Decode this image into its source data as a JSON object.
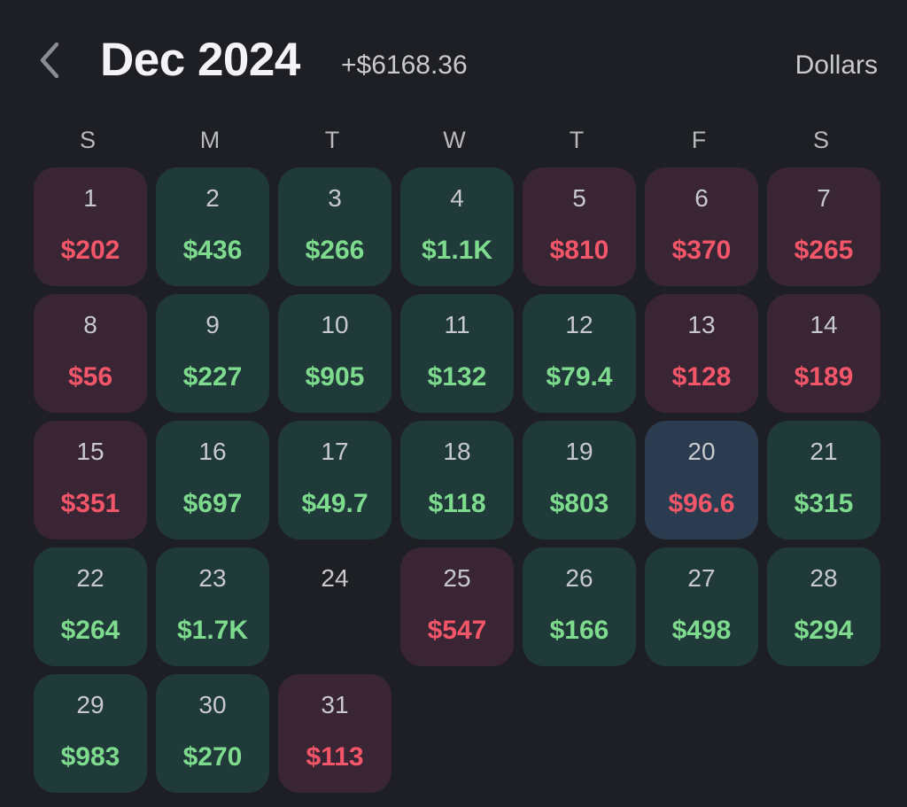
{
  "header": {
    "title": "Dec 2024",
    "total": "+$6168.36",
    "unit": "Dollars"
  },
  "colors": {
    "background": "#1e1f24",
    "gain_cell": "#1f3a39",
    "loss_cell": "#3a2535",
    "selected_cell": "#2b3b50",
    "gain_text": "#7edb8e",
    "loss_text": "#f25668"
  },
  "icons": {
    "back": "chevron-left-icon"
  },
  "weekdays": [
    "S",
    "M",
    "T",
    "W",
    "T",
    "F",
    "S"
  ],
  "days": [
    {
      "day": "1",
      "amount": "$202",
      "type": "loss"
    },
    {
      "day": "2",
      "amount": "$436",
      "type": "gain"
    },
    {
      "day": "3",
      "amount": "$266",
      "type": "gain"
    },
    {
      "day": "4",
      "amount": "$1.1K",
      "type": "gain"
    },
    {
      "day": "5",
      "amount": "$810",
      "type": "loss"
    },
    {
      "day": "6",
      "amount": "$370",
      "type": "loss"
    },
    {
      "day": "7",
      "amount": "$265",
      "type": "loss"
    },
    {
      "day": "8",
      "amount": "$56",
      "type": "loss"
    },
    {
      "day": "9",
      "amount": "$227",
      "type": "gain"
    },
    {
      "day": "10",
      "amount": "$905",
      "type": "gain"
    },
    {
      "day": "11",
      "amount": "$132",
      "type": "gain"
    },
    {
      "day": "12",
      "amount": "$79.4",
      "type": "gain"
    },
    {
      "day": "13",
      "amount": "$128",
      "type": "loss"
    },
    {
      "day": "14",
      "amount": "$189",
      "type": "loss"
    },
    {
      "day": "15",
      "amount": "$351",
      "type": "loss"
    },
    {
      "day": "16",
      "amount": "$697",
      "type": "gain"
    },
    {
      "day": "17",
      "amount": "$49.7",
      "type": "gain"
    },
    {
      "day": "18",
      "amount": "$118",
      "type": "gain"
    },
    {
      "day": "19",
      "amount": "$803",
      "type": "gain"
    },
    {
      "day": "20",
      "amount": "$96.6",
      "type": "today"
    },
    {
      "day": "21",
      "amount": "$315",
      "type": "gain"
    },
    {
      "day": "22",
      "amount": "$264",
      "type": "gain"
    },
    {
      "day": "23",
      "amount": "$1.7K",
      "type": "gain"
    },
    {
      "day": "24",
      "amount": "",
      "type": "empty"
    },
    {
      "day": "25",
      "amount": "$547",
      "type": "loss"
    },
    {
      "day": "26",
      "amount": "$166",
      "type": "gain"
    },
    {
      "day": "27",
      "amount": "$498",
      "type": "gain"
    },
    {
      "day": "28",
      "amount": "$294",
      "type": "gain"
    },
    {
      "day": "29",
      "amount": "$983",
      "type": "gain"
    },
    {
      "day": "30",
      "amount": "$270",
      "type": "gain"
    },
    {
      "day": "31",
      "amount": "$113",
      "type": "loss"
    }
  ]
}
